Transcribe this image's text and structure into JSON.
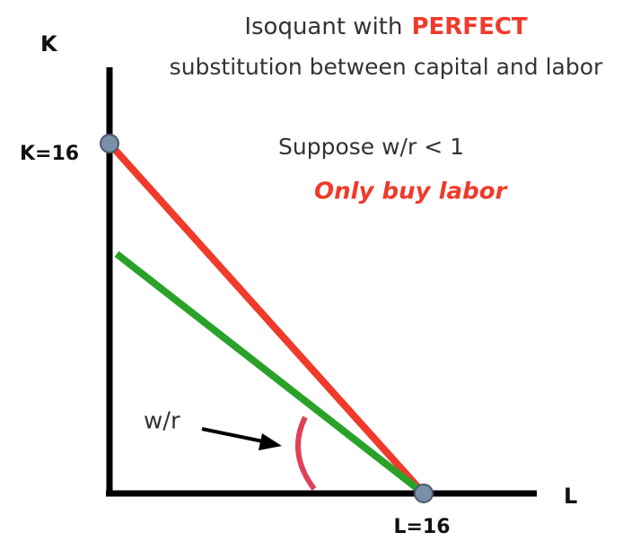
{
  "title": {
    "lead": "Isoquant with",
    "emphasis": "PERFECT",
    "line2": "substitution between capital and labor"
  },
  "axes": {
    "y_label": "K",
    "x_label": "L"
  },
  "intercepts": {
    "k": "K=16",
    "l": "L=16"
  },
  "annotations": {
    "condition": "Suppose w/r < 1",
    "conclusion": "Only buy labor",
    "slope": "w/r"
  }
}
